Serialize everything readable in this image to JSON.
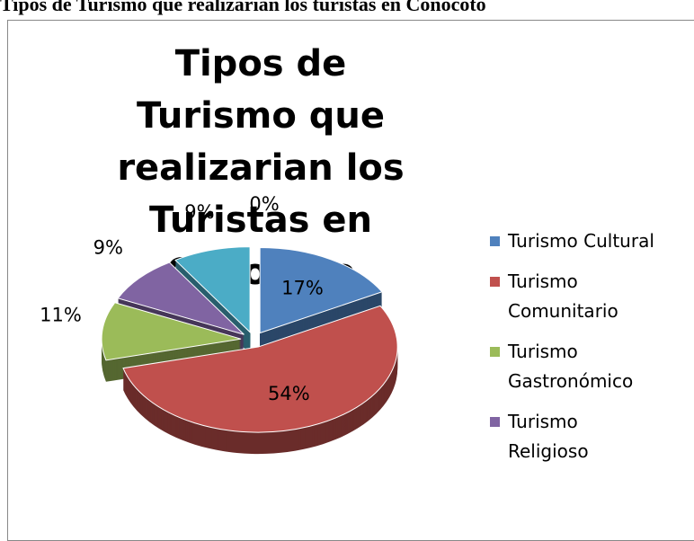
{
  "header": {
    "title": "Tipos de Turismo que realizarian los turistas en Conocoto"
  },
  "chart_data": {
    "type": "pie",
    "title": "Tipos de Turismo que realizarian los Turistas en Conocoto",
    "categories": [
      "Turismo Cultural",
      "Turismo Comunitario",
      "Turismo Gastronómico",
      "Turismo Religioso",
      null,
      null
    ],
    "values": [
      17,
      54,
      11,
      9,
      9,
      0
    ],
    "value_labels": [
      "17%",
      "54%",
      "11%",
      "9%",
      "9%",
      "0%"
    ],
    "colors": [
      "#4f81bd",
      "#c0504d",
      "#9bbb59",
      "#8064a2",
      "#4bacc6",
      "#f79646"
    ],
    "legend": "right"
  }
}
